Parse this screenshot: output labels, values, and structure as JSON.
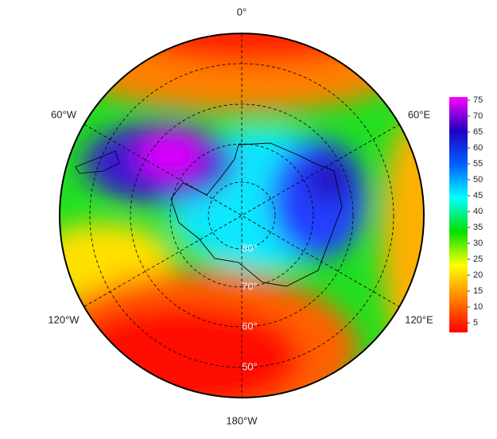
{
  "map": {
    "longitude_labels": [
      "0°",
      "60°E",
      "120°E",
      "180°W",
      "120°W",
      "60°W"
    ],
    "latitude_labels": [
      "80°",
      "70°",
      "60°",
      "50°"
    ],
    "colorbar": {
      "lim": [
        2,
        76
      ],
      "ticks": [
        5,
        10,
        15,
        20,
        25,
        30,
        35,
        40,
        45,
        50,
        55,
        60,
        65,
        70,
        75
      ],
      "colors": [
        "#ff0000",
        "#ff8000",
        "#ffff00",
        "#00e000",
        "#00ffff",
        "#0060ff",
        "#2000c0",
        "#ff00ff"
      ]
    }
  }
}
